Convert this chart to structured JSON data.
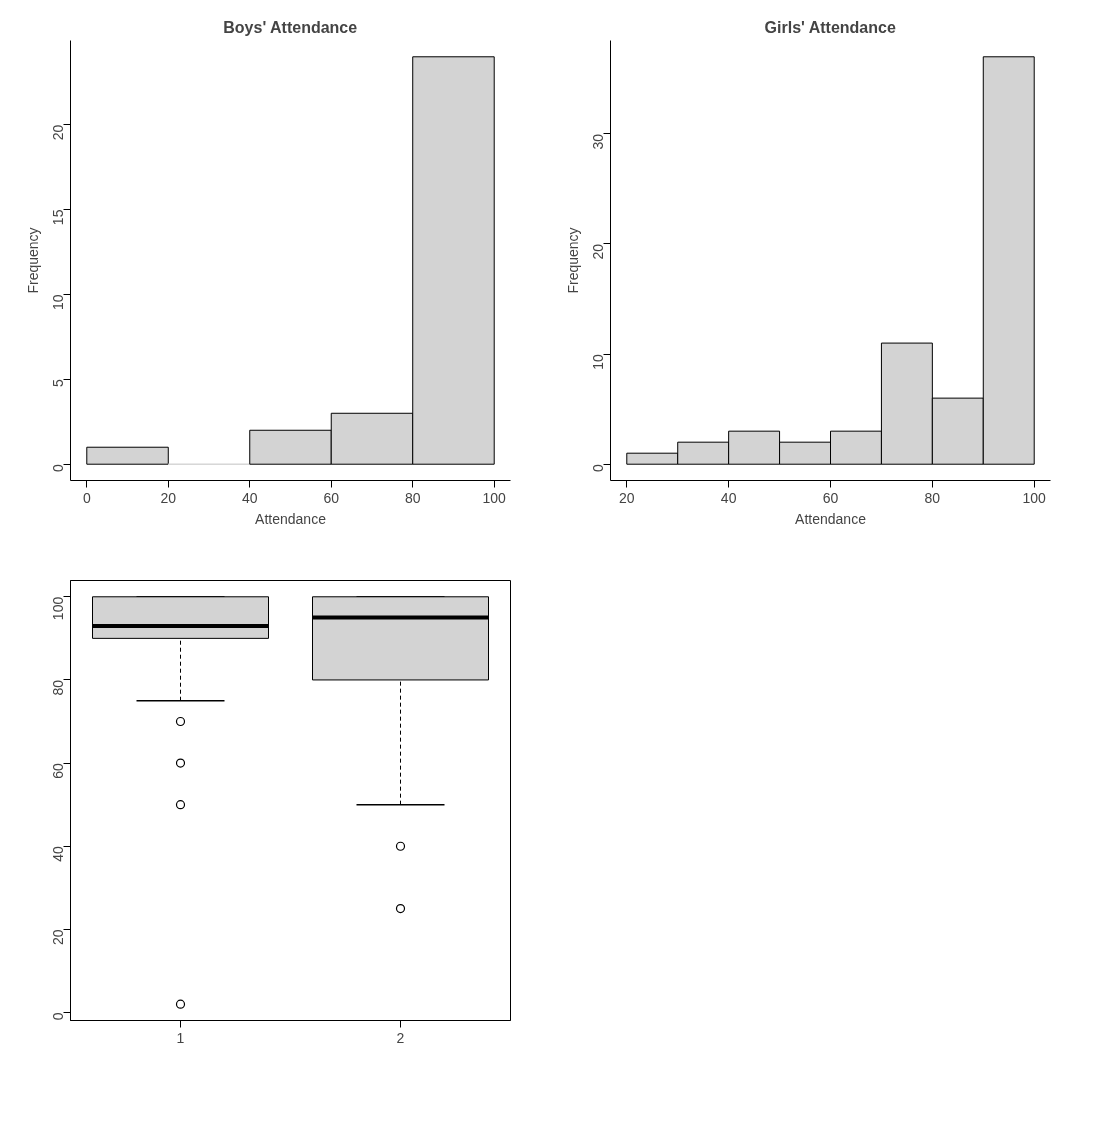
{
  "chart_data": [
    {
      "type": "histogram",
      "title": "Boys' Attendance",
      "xlabel": "Attendance",
      "ylabel": "Frequency",
      "color": "#d3d3d3",
      "bins": [
        0,
        20,
        40,
        60,
        80,
        100
      ],
      "values": [
        1,
        0,
        2,
        3,
        24
      ],
      "xlim": [
        -4,
        104
      ],
      "ylim": [
        -0.96,
        24.96
      ],
      "xticks": [
        0,
        20,
        40,
        60,
        80,
        100
      ],
      "yticks": [
        0,
        5,
        10,
        15,
        20
      ]
    },
    {
      "type": "histogram",
      "title": "Girls' Attendance",
      "xlabel": "Attendance",
      "ylabel": "Frequency",
      "color": "#d3d3d3",
      "bins": [
        20,
        30,
        40,
        50,
        60,
        70,
        80,
        90,
        100
      ],
      "values": [
        1,
        2,
        3,
        2,
        3,
        11,
        6,
        37
      ],
      "xlim": [
        16.8,
        103.2
      ],
      "ylim": [
        -1.48,
        38.48
      ],
      "xticks": [
        20,
        40,
        60,
        80,
        100
      ],
      "yticks": [
        0,
        10,
        20,
        30
      ]
    },
    {
      "type": "box",
      "categories": [
        "1",
        "2"
      ],
      "color": "#d3d3d3",
      "boxes": [
        {
          "low": 75,
          "q1": 90,
          "median": 93,
          "q3": 100,
          "high": 100,
          "outliers": [
            70,
            60,
            50,
            2
          ]
        },
        {
          "low": 50,
          "q1": 80,
          "median": 95,
          "q3": 100,
          "high": 100,
          "outliers": [
            40,
            25
          ]
        }
      ],
      "ylim": [
        -1.92,
        103.92
      ],
      "yticks": [
        0,
        20,
        40,
        60,
        80,
        100
      ]
    }
  ]
}
